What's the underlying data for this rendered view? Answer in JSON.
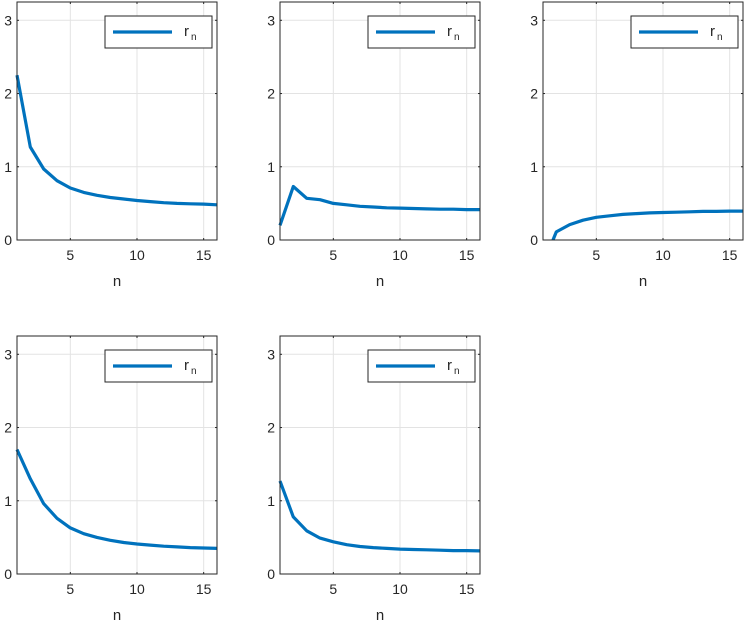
{
  "colors": {
    "series": "#0072BD",
    "axis": "#262626",
    "grid": "#e3e3e3"
  },
  "chart_data": [
    {
      "type": "line",
      "xlabel": "n",
      "xlim": [
        1,
        16
      ],
      "ylim": [
        0,
        3.25
      ],
      "xticks": [
        5,
        10,
        15
      ],
      "yticks": [
        0,
        1,
        2,
        3
      ],
      "grid": true,
      "legend_position": "top-right",
      "series": [
        {
          "name": "r",
          "name_sub": "n",
          "x": [
            1,
            2,
            3,
            4,
            5,
            6,
            7,
            8,
            9,
            10,
            11,
            12,
            13,
            14,
            15,
            16
          ],
          "values": [
            2.25,
            1.27,
            0.97,
            0.81,
            0.71,
            0.65,
            0.61,
            0.58,
            0.56,
            0.54,
            0.525,
            0.51,
            0.5,
            0.495,
            0.49,
            0.48
          ]
        }
      ]
    },
    {
      "type": "line",
      "xlabel": "n",
      "xlim": [
        1,
        16
      ],
      "ylim": [
        0,
        3.25
      ],
      "xticks": [
        5,
        10,
        15
      ],
      "yticks": [
        0,
        1,
        2,
        3
      ],
      "grid": true,
      "legend_position": "top-right",
      "series": [
        {
          "name": "r",
          "name_sub": "n",
          "x": [
            1,
            2,
            3,
            4,
            5,
            6,
            7,
            8,
            9,
            10,
            11,
            12,
            13,
            14,
            15,
            16
          ],
          "values": [
            0.2,
            0.73,
            0.57,
            0.55,
            0.5,
            0.48,
            0.46,
            0.45,
            0.44,
            0.435,
            0.43,
            0.425,
            0.42,
            0.42,
            0.415,
            0.415
          ]
        }
      ]
    },
    {
      "type": "line",
      "xlabel": "n",
      "xlim": [
        1,
        16
      ],
      "ylim": [
        0,
        3.25
      ],
      "xticks": [
        5,
        10,
        15
      ],
      "yticks": [
        0,
        1,
        2,
        3
      ],
      "grid": true,
      "legend_position": "top-right",
      "series": [
        {
          "name": "r",
          "name_sub": "n",
          "x": [
            1.75,
            2,
            3,
            4,
            5,
            6,
            7,
            8,
            9,
            10,
            11,
            12,
            13,
            14,
            15,
            16
          ],
          "values": [
            0,
            0.11,
            0.21,
            0.27,
            0.31,
            0.33,
            0.35,
            0.36,
            0.37,
            0.375,
            0.38,
            0.385,
            0.39,
            0.39,
            0.395,
            0.395
          ]
        }
      ]
    },
    {
      "type": "line",
      "xlabel": "n",
      "xlim": [
        1,
        16
      ],
      "ylim": [
        0,
        3.25
      ],
      "xticks": [
        5,
        10,
        15
      ],
      "yticks": [
        0,
        1,
        2,
        3
      ],
      "grid": true,
      "legend_position": "top-right",
      "series": [
        {
          "name": "r",
          "name_sub": "n",
          "x": [
            1,
            2,
            3,
            4,
            5,
            6,
            7,
            8,
            9,
            10,
            11,
            12,
            13,
            14,
            15,
            16
          ],
          "values": [
            1.7,
            1.3,
            0.96,
            0.76,
            0.63,
            0.55,
            0.5,
            0.46,
            0.43,
            0.41,
            0.395,
            0.38,
            0.37,
            0.36,
            0.355,
            0.35
          ]
        }
      ]
    },
    {
      "type": "line",
      "xlabel": "n",
      "xlim": [
        1,
        16
      ],
      "ylim": [
        0,
        3.25
      ],
      "xticks": [
        5,
        10,
        15
      ],
      "yticks": [
        0,
        1,
        2,
        3
      ],
      "grid": true,
      "legend_position": "top-right",
      "series": [
        {
          "name": "r",
          "name_sub": "n",
          "x": [
            1,
            2,
            3,
            4,
            5,
            6,
            7,
            8,
            9,
            10,
            11,
            12,
            13,
            14,
            15,
            16
          ],
          "values": [
            1.27,
            0.78,
            0.59,
            0.49,
            0.44,
            0.4,
            0.375,
            0.36,
            0.35,
            0.34,
            0.335,
            0.33,
            0.325,
            0.32,
            0.32,
            0.315
          ]
        }
      ]
    }
  ]
}
